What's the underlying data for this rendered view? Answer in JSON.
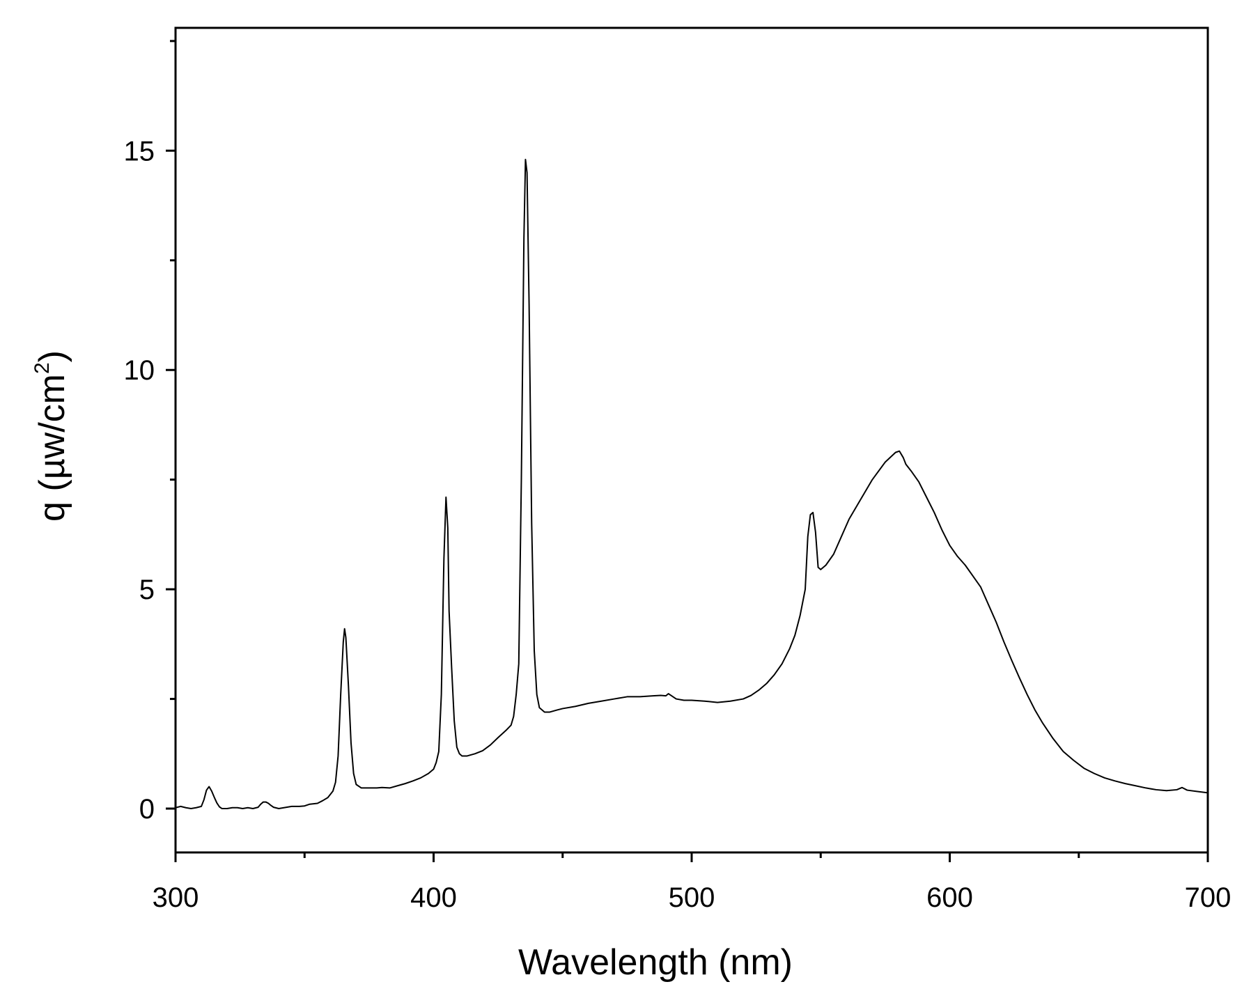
{
  "chart_data": {
    "type": "line",
    "title": "",
    "xlabel": "Wavelength (nm)",
    "ylabel": {
      "prefix": "q (µw/cm",
      "superscript": "2",
      "suffix": ")"
    },
    "xlim": [
      300,
      700
    ],
    "ylim": [
      -1,
      17.8
    ],
    "x_ticks": [
      300,
      400,
      500,
      600,
      700
    ],
    "x_tick_labels": [
      "300",
      "400",
      "500",
      "600",
      "700"
    ],
    "x_minor_ticks": [
      350,
      450,
      550,
      650
    ],
    "y_ticks": [
      0,
      5,
      10,
      15
    ],
    "y_tick_labels": [
      "0",
      "5",
      "10",
      "15"
    ],
    "y_minor_ticks": [
      2.5,
      7.5,
      12.5,
      17.5
    ],
    "grid": false,
    "legend": "none",
    "series": [
      {
        "color": "#000000",
        "points": [
          [
            300,
            0.02
          ],
          [
            302,
            0.05
          ],
          [
            304,
            0.02
          ],
          [
            306,
            0.0
          ],
          [
            308,
            0.02
          ],
          [
            310,
            0.05
          ],
          [
            311,
            0.2
          ],
          [
            312,
            0.42
          ],
          [
            313,
            0.5
          ],
          [
            314,
            0.4
          ],
          [
            315,
            0.26
          ],
          [
            316,
            0.13
          ],
          [
            317,
            0.04
          ],
          [
            318,
            0.0
          ],
          [
            320,
            0.0
          ],
          [
            322,
            0.02
          ],
          [
            324,
            0.02
          ],
          [
            326,
            0.0
          ],
          [
            328,
            0.02
          ],
          [
            330,
            0.0
          ],
          [
            332,
            0.03
          ],
          [
            333,
            0.1
          ],
          [
            334,
            0.15
          ],
          [
            335,
            0.15
          ],
          [
            336,
            0.12
          ],
          [
            337,
            0.07
          ],
          [
            338,
            0.03
          ],
          [
            340,
            0.0
          ],
          [
            342,
            0.02
          ],
          [
            345,
            0.05
          ],
          [
            348,
            0.05
          ],
          [
            350,
            0.06
          ],
          [
            352,
            0.1
          ],
          [
            355,
            0.12
          ],
          [
            357,
            0.18
          ],
          [
            359,
            0.25
          ],
          [
            361,
            0.4
          ],
          [
            362,
            0.6
          ],
          [
            363,
            1.2
          ],
          [
            364,
            2.6
          ],
          [
            365,
            3.8
          ],
          [
            365.5,
            4.1
          ],
          [
            366,
            3.9
          ],
          [
            367,
            2.8
          ],
          [
            368,
            1.5
          ],
          [
            369,
            0.8
          ],
          [
            370,
            0.55
          ],
          [
            372,
            0.47
          ],
          [
            375,
            0.47
          ],
          [
            378,
            0.47
          ],
          [
            380,
            0.48
          ],
          [
            383,
            0.47
          ],
          [
            386,
            0.52
          ],
          [
            389,
            0.57
          ],
          [
            392,
            0.63
          ],
          [
            395,
            0.7
          ],
          [
            398,
            0.8
          ],
          [
            400,
            0.9
          ],
          [
            401,
            1.05
          ],
          [
            402,
            1.3
          ],
          [
            403,
            2.6
          ],
          [
            404,
            5.7
          ],
          [
            404.8,
            7.1
          ],
          [
            405.5,
            6.4
          ],
          [
            406,
            4.5
          ],
          [
            407,
            3.2
          ],
          [
            408,
            2.0
          ],
          [
            409,
            1.4
          ],
          [
            410,
            1.25
          ],
          [
            411,
            1.2
          ],
          [
            413,
            1.2
          ],
          [
            416,
            1.25
          ],
          [
            419,
            1.32
          ],
          [
            422,
            1.45
          ],
          [
            425,
            1.62
          ],
          [
            428,
            1.78
          ],
          [
            430,
            1.9
          ],
          [
            431,
            2.1
          ],
          [
            432,
            2.6
          ],
          [
            433,
            3.3
          ],
          [
            434,
            7.5
          ],
          [
            435,
            13.0
          ],
          [
            435.6,
            14.8
          ],
          [
            436.2,
            14.5
          ],
          [
            437,
            11.5
          ],
          [
            438,
            6.5
          ],
          [
            439,
            3.6
          ],
          [
            440,
            2.6
          ],
          [
            441,
            2.3
          ],
          [
            443,
            2.2
          ],
          [
            445,
            2.2
          ],
          [
            448,
            2.25
          ],
          [
            450,
            2.28
          ],
          [
            455,
            2.33
          ],
          [
            460,
            2.4
          ],
          [
            465,
            2.45
          ],
          [
            470,
            2.5
          ],
          [
            475,
            2.55
          ],
          [
            480,
            2.55
          ],
          [
            485,
            2.57
          ],
          [
            488,
            2.58
          ],
          [
            490,
            2.57
          ],
          [
            491,
            2.62
          ],
          [
            492,
            2.58
          ],
          [
            494,
            2.5
          ],
          [
            497,
            2.47
          ],
          [
            500,
            2.47
          ],
          [
            505,
            2.45
          ],
          [
            510,
            2.42
          ],
          [
            515,
            2.45
          ],
          [
            520,
            2.5
          ],
          [
            523,
            2.58
          ],
          [
            526,
            2.7
          ],
          [
            529,
            2.85
          ],
          [
            532,
            3.05
          ],
          [
            535,
            3.3
          ],
          [
            538,
            3.65
          ],
          [
            540,
            3.95
          ],
          [
            542,
            4.4
          ],
          [
            543,
            4.7
          ],
          [
            544,
            5.0
          ],
          [
            545,
            6.2
          ],
          [
            546,
            6.7
          ],
          [
            547,
            6.75
          ],
          [
            548,
            6.3
          ],
          [
            549,
            5.5
          ],
          [
            550,
            5.45
          ],
          [
            552,
            5.55
          ],
          [
            555,
            5.8
          ],
          [
            558,
            6.2
          ],
          [
            561,
            6.6
          ],
          [
            565,
            7.0
          ],
          [
            570,
            7.5
          ],
          [
            575,
            7.9
          ],
          [
            579,
            8.12
          ],
          [
            580.5,
            8.15
          ],
          [
            582,
            8.0
          ],
          [
            583,
            7.85
          ],
          [
            585,
            7.7
          ],
          [
            588,
            7.45
          ],
          [
            591,
            7.1
          ],
          [
            594,
            6.75
          ],
          [
            597,
            6.35
          ],
          [
            600,
            6.0
          ],
          [
            603,
            5.75
          ],
          [
            606,
            5.55
          ],
          [
            609,
            5.3
          ],
          [
            612,
            5.05
          ],
          [
            615,
            4.65
          ],
          [
            618,
            4.25
          ],
          [
            621,
            3.8
          ],
          [
            624,
            3.38
          ],
          [
            627,
            2.98
          ],
          [
            630,
            2.6
          ],
          [
            633,
            2.25
          ],
          [
            636,
            1.95
          ],
          [
            640,
            1.6
          ],
          [
            644,
            1.3
          ],
          [
            648,
            1.1
          ],
          [
            652,
            0.92
          ],
          [
            656,
            0.8
          ],
          [
            660,
            0.7
          ],
          [
            664,
            0.63
          ],
          [
            668,
            0.57
          ],
          [
            672,
            0.52
          ],
          [
            676,
            0.47
          ],
          [
            680,
            0.43
          ],
          [
            684,
            0.41
          ],
          [
            688,
            0.43
          ],
          [
            690,
            0.48
          ],
          [
            692,
            0.42
          ],
          [
            696,
            0.39
          ],
          [
            700,
            0.36
          ]
        ]
      }
    ]
  },
  "colors": {
    "axis": "#000000",
    "line": "#000000",
    "background": "#ffffff"
  }
}
